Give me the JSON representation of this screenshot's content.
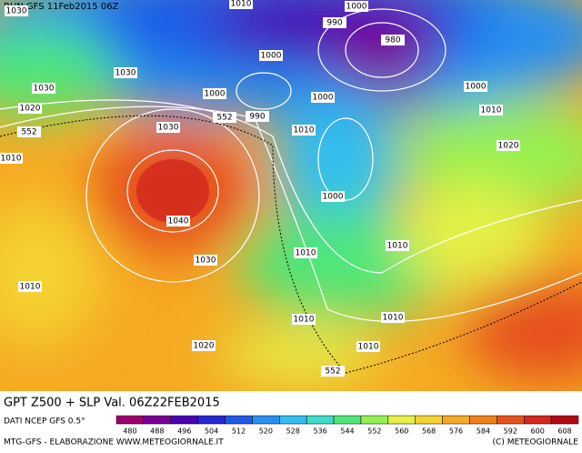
{
  "header": {
    "run": "RUN GFS 11Feb2015 06Z"
  },
  "map": {
    "isobar_labels": [
      1010,
      1000,
      1030,
      990,
      980,
      1000,
      1030,
      1030,
      1000,
      1000,
      1000,
      1020,
      552,
      990,
      1010,
      552,
      1030,
      1010,
      1020,
      1010,
      1000,
      1040,
      1010,
      1010,
      1030,
      1010,
      1010,
      1010,
      1020,
      1010,
      552
    ]
  },
  "footer": {
    "title": "GPT Z500 + SLP Val. 06Z22FEB2015",
    "source": "DATI NCEP GFS 0.5°",
    "credit_left": "MTG-GFS - ELABORAZIONE WWW.METEOGIORNALE.IT",
    "credit_right": "(C) METEOGIORNALE"
  },
  "colorbar": {
    "ticks": [
      480,
      488,
      496,
      504,
      512,
      520,
      528,
      536,
      544,
      552,
      560,
      568,
      576,
      584,
      592,
      600,
      608
    ],
    "colors": [
      "#a0006e",
      "#7a0096",
      "#4a00b4",
      "#2828d2",
      "#1e5ae6",
      "#2890f0",
      "#32bef0",
      "#3cdcc8",
      "#50e678",
      "#96f050",
      "#e6f046",
      "#f5d232",
      "#f5aa23",
      "#f08019",
      "#e6501e",
      "#d2281e",
      "#b40a14"
    ]
  }
}
